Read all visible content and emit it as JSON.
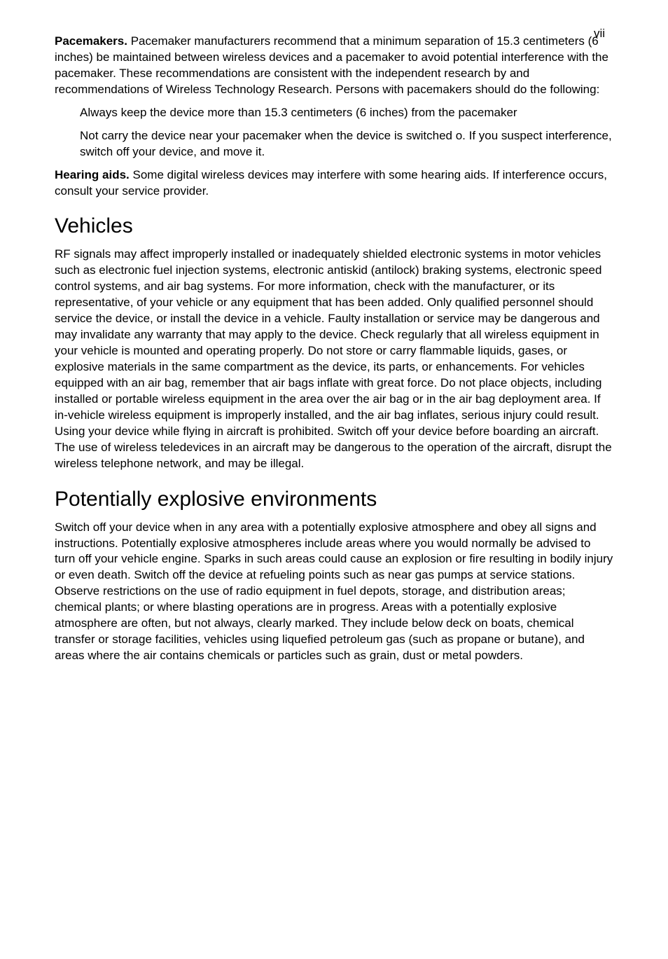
{
  "page": {
    "number": "vii"
  },
  "para_pacemakers": {
    "lead": "Pacemakers.",
    "text": " Pacemaker manufacturers recommend that a minimum separation of 15.3 centimeters (6 inches) be maintained between wireless devices and a pacemaker to avoid potential interference with the pacemaker. These recommendations are consistent with the independent research by and recommendations of Wireless Technology Research. Persons with pacemakers should do the following:"
  },
  "pacemaker_items": [
    "Always keep the device more than 15.3 centimeters (6 inches) from the pacemaker",
    "Not carry the device near your pacemaker when the device is switched o. If you suspect interference, switch off your device, and move it."
  ],
  "para_hearing": {
    "lead": "Hearing aids.",
    "text": "  Some digital wireless devices may interfere with some hearing aids. If interference occurs, consult your service provider."
  },
  "section_vehicles": {
    "title": "Vehicles",
    "body": "RF signals may affect improperly installed or inadequately shielded electronic systems in motor vehicles such as electronic fuel injection systems, electronic antiskid (antilock) braking systems, electronic speed control systems, and air bag systems. For more information, check with the manufacturer, or its representative, of your vehicle or any equipment that has been added. Only qualified personnel should service the device, or install the device in a vehicle. Faulty installation or service may be dangerous and may invalidate any warranty that may apply to the device. Check regularly that all wireless equipment in your vehicle is mounted and operating properly. Do not store or carry flammable liquids, gases, or explosive materials in the same compartment as the device, its parts, or enhancements. For vehicles equipped with an air bag, remember that air bags inflate with great force. Do not place objects, including installed or portable wireless equipment in the area over the air bag or in the air bag deployment area. If in-vehicle wireless equipment is improperly installed, and the air bag inflates, serious injury could result. Using your device while flying in aircraft is prohibited. Switch off your device before boarding an aircraft. The use of wireless teledevices in an aircraft may be dangerous to the operation of the aircraft, disrupt the wireless telephone network, and may be illegal."
  },
  "section_explosive": {
    "title": "Potentially explosive environments",
    "body": "Switch off your device when in any area with a potentially explosive atmosphere and obey all signs and instructions. Potentially explosive atmospheres include areas where you would normally be advised to turn off your vehicle engine. Sparks in such areas could cause an explosion or fire resulting in bodily injury or even death. Switch off the device at refueling points such as near gas pumps at service stations. Observe restrictions on the use of radio equipment in fuel depots, storage, and distribution areas; chemical plants; or where blasting operations are in progress. Areas with a potentially explosive atmosphere are often, but not always, clearly marked. They include below deck on boats, chemical transfer or storage facilities, vehicles using liquefied petroleum gas (such as propane or butane), and areas where the air contains chemicals or particles such as grain, dust or metal powders."
  }
}
